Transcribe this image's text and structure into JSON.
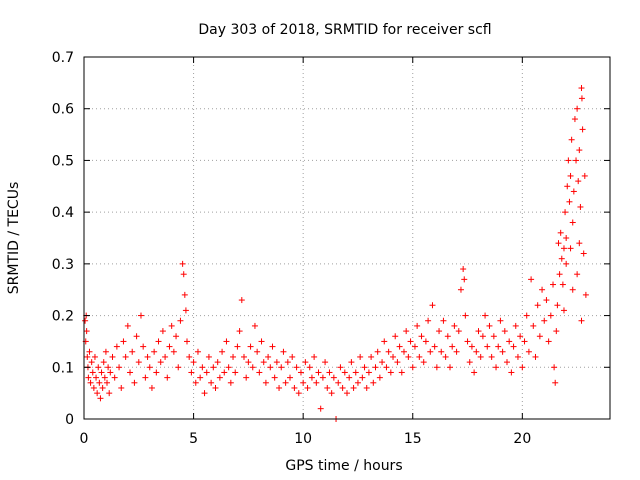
{
  "chart_data": {
    "type": "scatter",
    "title": "Day 303 of 2018, SRMTID for receiver scfl",
    "xlabel": "GPS time / hours",
    "ylabel": "SRMTID / TECUs",
    "xlim": [
      0,
      24
    ],
    "ylim": [
      0,
      0.7
    ],
    "xticks": [
      0,
      5,
      10,
      15,
      20
    ],
    "xtick_labels": [
      "0",
      "5",
      "10",
      "15",
      "20"
    ],
    "yticks": [
      0,
      0.1,
      0.2,
      0.3,
      0.4,
      0.5,
      0.6,
      0.7
    ],
    "ytick_labels": [
      "0",
      "0.1",
      "0.2",
      "0.3",
      "0.4",
      "0.5",
      "0.6",
      "0.7"
    ],
    "grid": true,
    "marker": "+",
    "color": "#ff0000",
    "series": [
      {
        "name": "SRMTID",
        "points": [
          [
            0.05,
            0.19
          ],
          [
            0.08,
            0.15
          ],
          [
            0.1,
            0.2
          ],
          [
            0.12,
            0.17
          ],
          [
            0.15,
            0.12
          ],
          [
            0.18,
            0.1
          ],
          [
            0.2,
            0.08
          ],
          [
            0.25,
            0.13
          ],
          [
            0.3,
            0.07
          ],
          [
            0.35,
            0.11
          ],
          [
            0.4,
            0.09
          ],
          [
            0.45,
            0.06
          ],
          [
            0.5,
            0.12
          ],
          [
            0.55,
            0.08
          ],
          [
            0.6,
            0.05
          ],
          [
            0.65,
            0.1
          ],
          [
            0.7,
            0.07
          ],
          [
            0.75,
            0.04
          ],
          [
            0.8,
            0.09
          ],
          [
            0.85,
            0.06
          ],
          [
            0.9,
            0.11
          ],
          [
            0.95,
            0.08
          ],
          [
            1.0,
            0.13
          ],
          [
            1.05,
            0.07
          ],
          [
            1.1,
            0.1
          ],
          [
            1.15,
            0.05
          ],
          [
            1.2,
            0.09
          ],
          [
            1.3,
            0.12
          ],
          [
            1.4,
            0.08
          ],
          [
            1.5,
            0.14
          ],
          [
            1.6,
            0.1
          ],
          [
            1.7,
            0.06
          ],
          [
            1.8,
            0.15
          ],
          [
            1.9,
            0.12
          ],
          [
            2.0,
            0.18
          ],
          [
            2.1,
            0.09
          ],
          [
            2.2,
            0.13
          ],
          [
            2.3,
            0.07
          ],
          [
            2.4,
            0.16
          ],
          [
            2.5,
            0.11
          ],
          [
            2.6,
            0.2
          ],
          [
            2.7,
            0.14
          ],
          [
            2.8,
            0.08
          ],
          [
            2.9,
            0.12
          ],
          [
            3.0,
            0.1
          ],
          [
            3.1,
            0.06
          ],
          [
            3.2,
            0.13
          ],
          [
            3.3,
            0.09
          ],
          [
            3.4,
            0.15
          ],
          [
            3.5,
            0.11
          ],
          [
            3.6,
            0.17
          ],
          [
            3.7,
            0.12
          ],
          [
            3.8,
            0.08
          ],
          [
            3.9,
            0.14
          ],
          [
            4.0,
            0.18
          ],
          [
            4.1,
            0.13
          ],
          [
            4.2,
            0.16
          ],
          [
            4.3,
            0.1
          ],
          [
            4.4,
            0.19
          ],
          [
            4.5,
            0.3
          ],
          [
            4.55,
            0.28
          ],
          [
            4.6,
            0.24
          ],
          [
            4.65,
            0.21
          ],
          [
            4.7,
            0.15
          ],
          [
            4.8,
            0.12
          ],
          [
            4.9,
            0.09
          ],
          [
            5.0,
            0.11
          ],
          [
            5.1,
            0.07
          ],
          [
            5.2,
            0.13
          ],
          [
            5.3,
            0.08
          ],
          [
            5.4,
            0.1
          ],
          [
            5.5,
            0.05
          ],
          [
            5.6,
            0.09
          ],
          [
            5.7,
            0.12
          ],
          [
            5.8,
            0.07
          ],
          [
            5.9,
            0.1
          ],
          [
            6.0,
            0.06
          ],
          [
            6.1,
            0.11
          ],
          [
            6.2,
            0.08
          ],
          [
            6.3,
            0.13
          ],
          [
            6.4,
            0.09
          ],
          [
            6.5,
            0.15
          ],
          [
            6.6,
            0.1
          ],
          [
            6.7,
            0.07
          ],
          [
            6.8,
            0.12
          ],
          [
            6.9,
            0.09
          ],
          [
            7.0,
            0.14
          ],
          [
            7.1,
            0.17
          ],
          [
            7.2,
            0.23
          ],
          [
            7.3,
            0.12
          ],
          [
            7.4,
            0.08
          ],
          [
            7.5,
            0.11
          ],
          [
            7.6,
            0.14
          ],
          [
            7.7,
            0.1
          ],
          [
            7.8,
            0.18
          ],
          [
            7.9,
            0.13
          ],
          [
            8.0,
            0.09
          ],
          [
            8.1,
            0.15
          ],
          [
            8.2,
            0.11
          ],
          [
            8.3,
            0.07
          ],
          [
            8.4,
            0.12
          ],
          [
            8.5,
            0.1
          ],
          [
            8.6,
            0.14
          ],
          [
            8.7,
            0.08
          ],
          [
            8.8,
            0.11
          ],
          [
            8.9,
            0.06
          ],
          [
            9.0,
            0.1
          ],
          [
            9.1,
            0.13
          ],
          [
            9.2,
            0.07
          ],
          [
            9.3,
            0.11
          ],
          [
            9.4,
            0.08
          ],
          [
            9.5,
            0.12
          ],
          [
            9.6,
            0.06
          ],
          [
            9.7,
            0.1
          ],
          [
            9.8,
            0.05
          ],
          [
            9.9,
            0.09
          ],
          [
            10.0,
            0.07
          ],
          [
            10.1,
            0.11
          ],
          [
            10.2,
            0.06
          ],
          [
            10.3,
            0.1
          ],
          [
            10.4,
            0.08
          ],
          [
            10.5,
            0.12
          ],
          [
            10.6,
            0.07
          ],
          [
            10.7,
            0.09
          ],
          [
            10.8,
            0.02
          ],
          [
            10.9,
            0.08
          ],
          [
            11.0,
            0.11
          ],
          [
            11.1,
            0.06
          ],
          [
            11.2,
            0.09
          ],
          [
            11.3,
            0.05
          ],
          [
            11.4,
            0.08
          ],
          [
            11.5,
            0.0
          ],
          [
            11.6,
            0.07
          ],
          [
            11.7,
            0.1
          ],
          [
            11.8,
            0.06
          ],
          [
            11.9,
            0.09
          ],
          [
            12.0,
            0.05
          ],
          [
            12.1,
            0.08
          ],
          [
            12.2,
            0.11
          ],
          [
            12.3,
            0.06
          ],
          [
            12.4,
            0.09
          ],
          [
            12.5,
            0.07
          ],
          [
            12.6,
            0.12
          ],
          [
            12.7,
            0.08
          ],
          [
            12.8,
            0.1
          ],
          [
            12.9,
            0.06
          ],
          [
            13.0,
            0.09
          ],
          [
            13.1,
            0.12
          ],
          [
            13.2,
            0.07
          ],
          [
            13.3,
            0.1
          ],
          [
            13.4,
            0.13
          ],
          [
            13.5,
            0.08
          ],
          [
            13.6,
            0.11
          ],
          [
            13.7,
            0.15
          ],
          [
            13.8,
            0.1
          ],
          [
            13.9,
            0.13
          ],
          [
            14.0,
            0.09
          ],
          [
            14.1,
            0.12
          ],
          [
            14.2,
            0.16
          ],
          [
            14.3,
            0.11
          ],
          [
            14.4,
            0.14
          ],
          [
            14.5,
            0.09
          ],
          [
            14.6,
            0.13
          ],
          [
            14.7,
            0.17
          ],
          [
            14.8,
            0.12
          ],
          [
            14.9,
            0.15
          ],
          [
            15.0,
            0.1
          ],
          [
            15.1,
            0.14
          ],
          [
            15.2,
            0.18
          ],
          [
            15.3,
            0.12
          ],
          [
            15.4,
            0.16
          ],
          [
            15.5,
            0.11
          ],
          [
            15.6,
            0.15
          ],
          [
            15.7,
            0.19
          ],
          [
            15.8,
            0.13
          ],
          [
            15.9,
            0.22
          ],
          [
            16.0,
            0.14
          ],
          [
            16.1,
            0.1
          ],
          [
            16.2,
            0.17
          ],
          [
            16.3,
            0.13
          ],
          [
            16.4,
            0.19
          ],
          [
            16.5,
            0.12
          ],
          [
            16.6,
            0.16
          ],
          [
            16.7,
            0.1
          ],
          [
            16.8,
            0.14
          ],
          [
            16.9,
            0.18
          ],
          [
            17.0,
            0.13
          ],
          [
            17.1,
            0.17
          ],
          [
            17.2,
            0.25
          ],
          [
            17.3,
            0.29
          ],
          [
            17.35,
            0.27
          ],
          [
            17.4,
            0.2
          ],
          [
            17.5,
            0.15
          ],
          [
            17.6,
            0.11
          ],
          [
            17.7,
            0.14
          ],
          [
            17.8,
            0.09
          ],
          [
            17.9,
            0.13
          ],
          [
            18.0,
            0.17
          ],
          [
            18.1,
            0.12
          ],
          [
            18.2,
            0.16
          ],
          [
            18.3,
            0.2
          ],
          [
            18.4,
            0.14
          ],
          [
            18.5,
            0.18
          ],
          [
            18.6,
            0.12
          ],
          [
            18.7,
            0.16
          ],
          [
            18.8,
            0.1
          ],
          [
            18.9,
            0.14
          ],
          [
            19.0,
            0.19
          ],
          [
            19.1,
            0.13
          ],
          [
            19.2,
            0.17
          ],
          [
            19.3,
            0.11
          ],
          [
            19.4,
            0.15
          ],
          [
            19.5,
            0.09
          ],
          [
            19.6,
            0.14
          ],
          [
            19.7,
            0.18
          ],
          [
            19.8,
            0.12
          ],
          [
            19.9,
            0.16
          ],
          [
            20.0,
            0.1
          ],
          [
            20.1,
            0.15
          ],
          [
            20.2,
            0.2
          ],
          [
            20.3,
            0.13
          ],
          [
            20.4,
            0.27
          ],
          [
            20.5,
            0.18
          ],
          [
            20.6,
            0.12
          ],
          [
            20.7,
            0.22
          ],
          [
            20.8,
            0.16
          ],
          [
            20.9,
            0.25
          ],
          [
            21.0,
            0.19
          ],
          [
            21.1,
            0.23
          ],
          [
            21.2,
            0.15
          ],
          [
            21.3,
            0.2
          ],
          [
            21.4,
            0.26
          ],
          [
            21.45,
            0.1
          ],
          [
            21.5,
            0.07
          ],
          [
            21.55,
            0.17
          ],
          [
            21.6,
            0.22
          ],
          [
            21.65,
            0.34
          ],
          [
            21.7,
            0.28
          ],
          [
            21.75,
            0.36
          ],
          [
            21.8,
            0.31
          ],
          [
            21.85,
            0.26
          ],
          [
            21.9,
            0.33
          ],
          [
            21.95,
            0.4
          ],
          [
            22.0,
            0.35
          ],
          [
            22.05,
            0.45
          ],
          [
            22.1,
            0.5
          ],
          [
            22.15,
            0.42
          ],
          [
            22.2,
            0.47
          ],
          [
            22.25,
            0.54
          ],
          [
            22.3,
            0.38
          ],
          [
            22.35,
            0.44
          ],
          [
            22.4,
            0.58
          ],
          [
            22.45,
            0.5
          ],
          [
            22.5,
            0.6
          ],
          [
            22.55,
            0.46
          ],
          [
            22.6,
            0.52
          ],
          [
            22.65,
            0.41
          ],
          [
            22.7,
            0.64
          ],
          [
            22.72,
            0.62
          ],
          [
            22.75,
            0.56
          ],
          [
            22.8,
            0.32
          ],
          [
            22.85,
            0.47
          ],
          [
            22.9,
            0.24
          ],
          [
            22.7,
            0.19
          ],
          [
            22.6,
            0.34
          ],
          [
            22.5,
            0.28
          ],
          [
            22.3,
            0.25
          ],
          [
            22.2,
            0.33
          ],
          [
            22.0,
            0.3
          ],
          [
            21.9,
            0.21
          ]
        ]
      }
    ]
  }
}
